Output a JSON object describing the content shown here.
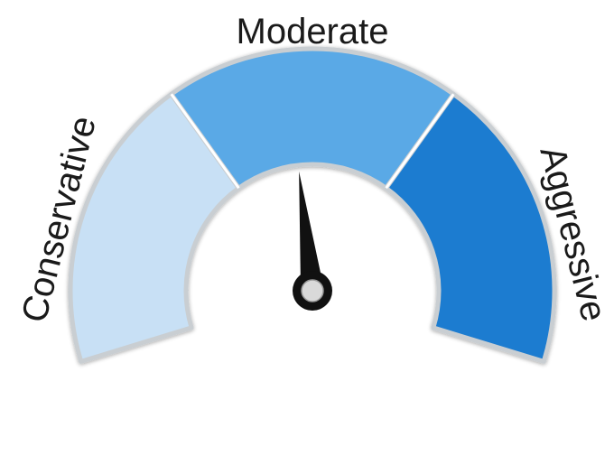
{
  "gauge": {
    "labels": {
      "conservative": "Conservative",
      "moderate": "Moderate",
      "aggressive": "Aggressive"
    },
    "segments": [
      {
        "name": "conservative",
        "color": "#c8e0f5"
      },
      {
        "name": "moderate",
        "color": "#5aa9e6"
      },
      {
        "name": "aggressive",
        "color": "#1a7bd0"
      }
    ],
    "needle": {
      "position_fraction": 0.47,
      "color": "#111111",
      "hub_color": "#d9d9d9"
    },
    "outline_color": "#c9ced2",
    "divider_color": "#ffffff"
  }
}
